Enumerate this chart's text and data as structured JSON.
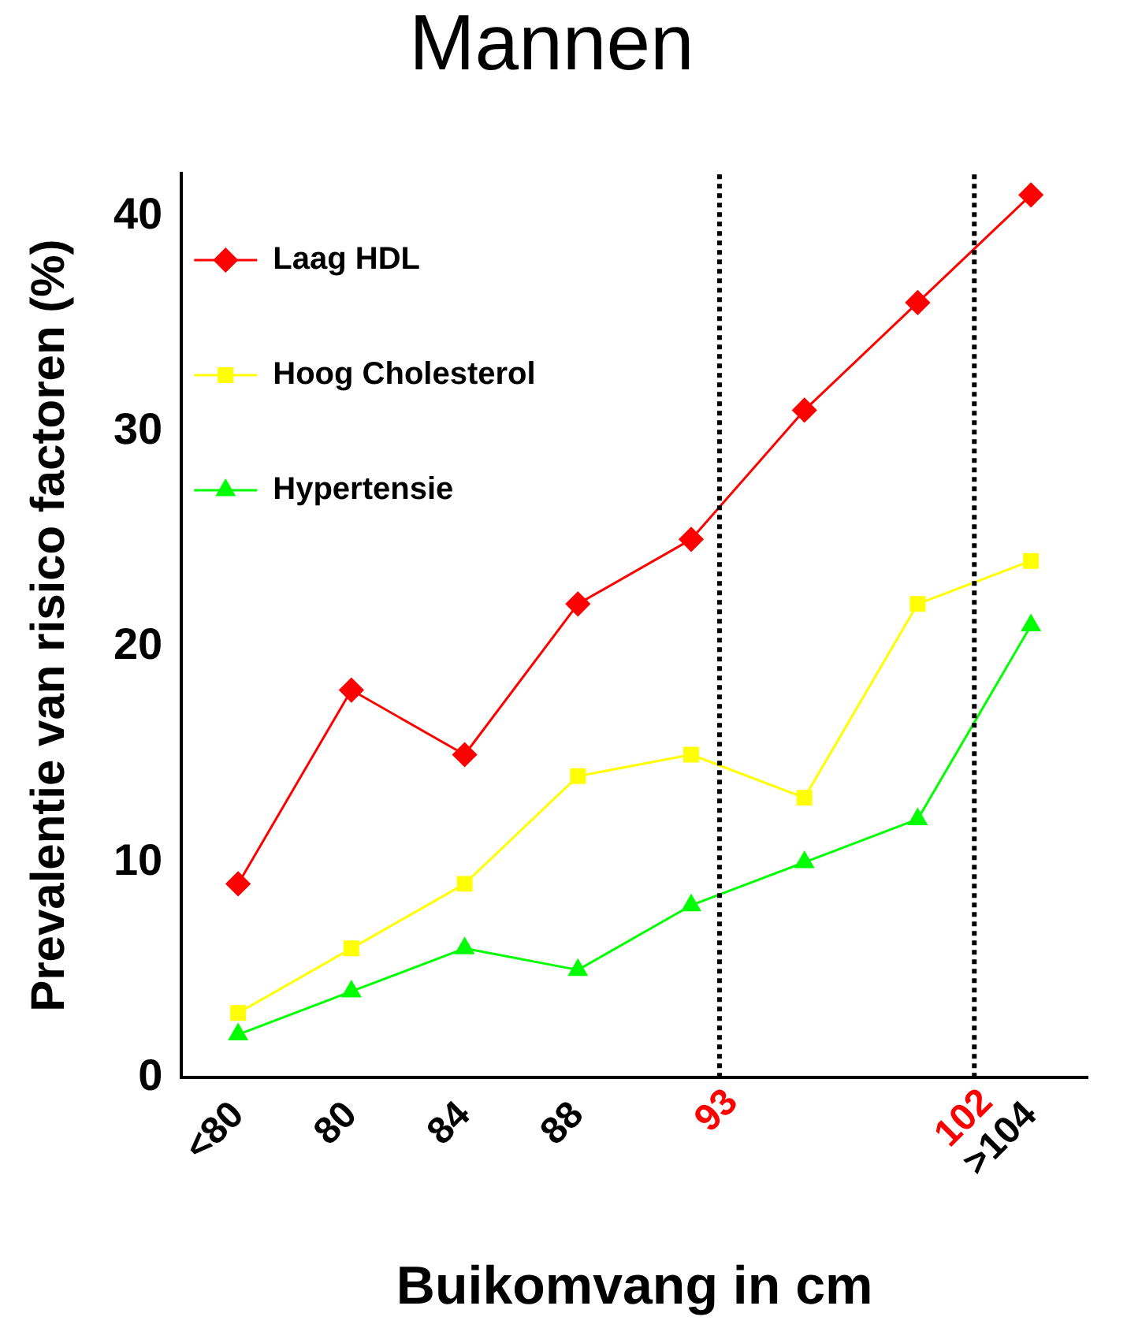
{
  "chart_data": {
    "type": "line",
    "title": "Mannen",
    "xlabel": "Buikomvang in cm",
    "ylabel": "Prevalentie van risico factoren (%)",
    "x": [
      76,
      80,
      84,
      88,
      92,
      96,
      100,
      104
    ],
    "xlim": [
      74,
      106
    ],
    "xticks": [
      {
        "value": 76,
        "label": "<80"
      },
      80,
      84,
      88,
      {
        "value": 104,
        "label": ">104"
      }
    ],
    "ylim": [
      0,
      42
    ],
    "yticks": [
      0,
      10,
      20,
      30,
      40
    ],
    "legend": "top left",
    "series": [
      {
        "name": "Laag HDL",
        "color": "#ff0000",
        "marker": "diamond",
        "values": [
          9,
          18,
          15,
          22,
          25,
          31,
          36,
          41
        ]
      },
      {
        "name": "Hoog Cholesterol",
        "color": "#ffff00",
        "marker": "square",
        "values": [
          3,
          6,
          9,
          14,
          15,
          13,
          22,
          24
        ]
      },
      {
        "name": "Hypertensie",
        "color": "#00ff00",
        "marker": "triangle",
        "values": [
          2,
          4,
          6,
          5,
          8,
          10,
          12,
          21
        ]
      }
    ],
    "ref_lines": [
      {
        "axis": "x",
        "value": 93,
        "label": "93",
        "color": "#000000",
        "line_style": "dotted"
      },
      {
        "axis": "x",
        "value": 102,
        "label": "102",
        "color": "#000000",
        "line_style": "dotted"
      }
    ]
  }
}
